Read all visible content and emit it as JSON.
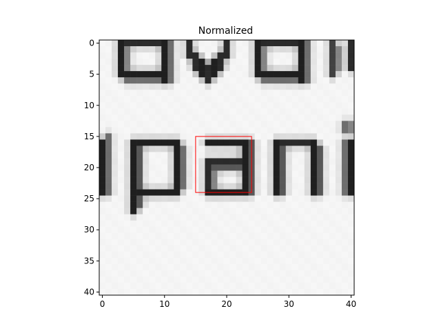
{
  "chart_data": {
    "type": "heatmap",
    "title": "Normalized",
    "colormap": "gray",
    "grid": false,
    "xlim": [
      -0.5,
      40.5
    ],
    "ylim": [
      40.5,
      -0.5
    ],
    "xticks": [
      0,
      10,
      20,
      30,
      40
    ],
    "yticks": [
      0,
      5,
      10,
      15,
      20,
      25,
      30,
      35,
      40
    ],
    "xtick_labels": [
      "0",
      "10",
      "20",
      "30",
      "40"
    ],
    "ytick_labels": [
      "0",
      "5",
      "10",
      "15",
      "20",
      "25",
      "30",
      "35",
      "40"
    ],
    "image_size": [
      41,
      41
    ],
    "content": "grayscale crop of printed text: partial letters 'ava' on rows 0-6 and 'pani' on rows 15-27",
    "annotation_box": {
      "color": "#ff0000",
      "x0": 15,
      "x1": 24,
      "y0": 15,
      "y1": 24
    }
  }
}
